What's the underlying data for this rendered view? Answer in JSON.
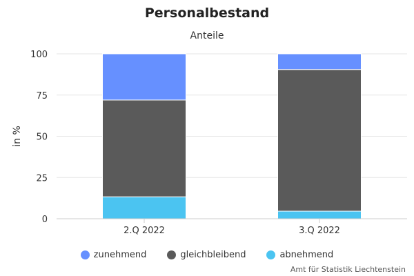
{
  "chart_data": {
    "type": "bar",
    "stacked": true,
    "title": "Personalbestand",
    "subtitle": "Anteile",
    "xlabel": "",
    "ylabel": "in %",
    "ylim": [
      0,
      100
    ],
    "yticks": [
      0,
      25,
      50,
      75,
      100
    ],
    "categories": [
      "2.Q 2022",
      "3.Q 2022"
    ],
    "series": [
      {
        "name": "abnehmend",
        "color": "#4bc4f1",
        "values": [
          13.3,
          4.6
        ]
      },
      {
        "name": "gleichbleibend",
        "color": "#5a5a5a",
        "values": [
          58.7,
          85.9
        ]
      },
      {
        "name": "zunehmend",
        "color": "#6690ff",
        "values": [
          28.0,
          9.5
        ]
      }
    ],
    "legend": {
      "position": "bottom",
      "order": [
        "zunehmend",
        "gleichbleibend",
        "abnehmend"
      ]
    },
    "grid": true
  },
  "source": "Amt für Statistik Liechtenstein"
}
